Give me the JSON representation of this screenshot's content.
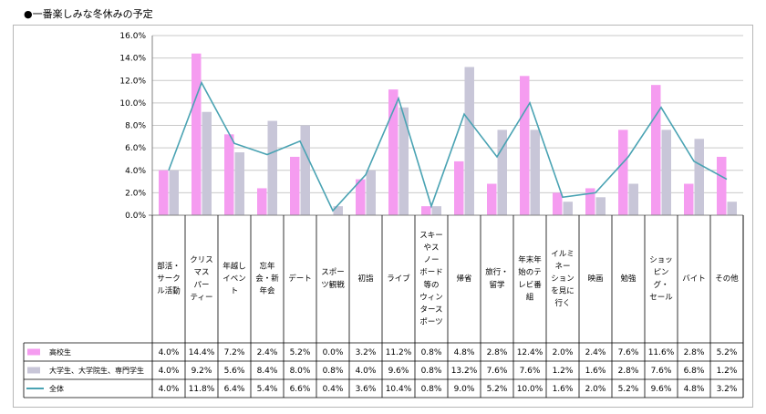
{
  "title": "●一番楽しみな冬休みの予定",
  "colors": {
    "hs": "#f59cf0",
    "univ": "#c8c6d8",
    "all": "#4aa3b3",
    "grid": "#c9c9c9",
    "axis": "#808080"
  },
  "chart_data": {
    "type": "bar",
    "title": "",
    "xlabel": "",
    "ylabel": "",
    "ylim": [
      0,
      16
    ],
    "yticks": [
      "0.0%",
      "2.0%",
      "4.0%",
      "6.0%",
      "8.0%",
      "10.0%",
      "12.0%",
      "14.0%",
      "16.0%"
    ],
    "grid": true,
    "categories": [
      "部活・サークル活動",
      "クリスマスパーティー",
      "年越しイベント",
      "忘年会・新年会",
      "デート",
      "スポーツ観戦",
      "初詣",
      "ライブ",
      "スキーやスノーボード等のウィンタースポーツ",
      "帰省",
      "旅行・留学",
      "年末年始のテレビ番組",
      "イルミネーションを見に行く",
      "映画",
      "勉強",
      "ショッピング・セール",
      "バイト",
      "その他"
    ],
    "category_lines": [
      [
        "部活・",
        "サーク",
        "ル活動"
      ],
      [
        "クリス",
        "マス",
        "パー",
        "ティー"
      ],
      [
        "年越し",
        "イベン",
        "ト"
      ],
      [
        "忘年",
        "会・新",
        "年会"
      ],
      [
        "デート"
      ],
      [
        "スポー",
        "ツ観戦"
      ],
      [
        "初詣"
      ],
      [
        "ライブ"
      ],
      [
        "スキー",
        "やス",
        "ノー",
        "ボード",
        "等の",
        "ウィン",
        "タース",
        "ポーツ"
      ],
      [
        "帰省"
      ],
      [
        "旅行・",
        "留学"
      ],
      [
        "年末年",
        "始のテ",
        "レビ番",
        "組"
      ],
      [
        "イルミ",
        "ネー",
        "ション",
        "を見に",
        "行く"
      ],
      [
        "映画"
      ],
      [
        "勉強"
      ],
      [
        "ショッ",
        "ピン",
        "グ・",
        "セール"
      ],
      [
        "バイト"
      ],
      [
        "その他"
      ]
    ],
    "series": [
      {
        "name": "高校生",
        "kind": "bar",
        "color": "#f59cf0",
        "values": [
          4.0,
          14.4,
          7.2,
          2.4,
          5.2,
          0.0,
          3.2,
          11.2,
          0.8,
          4.8,
          2.8,
          12.4,
          2.0,
          2.4,
          7.6,
          11.6,
          2.8,
          5.2
        ],
        "labels": [
          "4.0%",
          "14.4%",
          "7.2%",
          "2.4%",
          "5.2%",
          "0.0%",
          "3.2%",
          "11.2%",
          "0.8%",
          "4.8%",
          "2.8%",
          "12.4%",
          "2.0%",
          "2.4%",
          "7.6%",
          "11.6%",
          "2.8%",
          "5.2%"
        ]
      },
      {
        "name": "大学生、大学院生、専門学生",
        "kind": "bar",
        "color": "#c8c6d8",
        "values": [
          4.0,
          9.2,
          5.6,
          8.4,
          8.0,
          0.8,
          4.0,
          9.6,
          0.8,
          13.2,
          7.6,
          7.6,
          1.2,
          1.6,
          2.8,
          7.6,
          6.8,
          1.2
        ],
        "labels": [
          "4.0%",
          "9.2%",
          "5.6%",
          "8.4%",
          "8.0%",
          "0.8%",
          "4.0%",
          "9.6%",
          "0.8%",
          "13.2%",
          "7.6%",
          "7.6%",
          "1.2%",
          "1.6%",
          "2.8%",
          "7.6%",
          "6.8%",
          "1.2%"
        ]
      },
      {
        "name": "全体",
        "kind": "line",
        "color": "#4aa3b3",
        "values": [
          4.0,
          11.8,
          6.4,
          5.4,
          6.6,
          0.4,
          3.6,
          10.4,
          0.8,
          9.0,
          5.2,
          10.0,
          1.6,
          2.0,
          5.2,
          9.6,
          4.8,
          3.2
        ],
        "labels": [
          "4.0%",
          "11.8%",
          "6.4%",
          "5.4%",
          "6.6%",
          "0.4%",
          "3.6%",
          "10.4%",
          "0.8%",
          "9.0%",
          "5.2%",
          "10.0%",
          "1.6%",
          "2.0%",
          "5.2%",
          "9.6%",
          "4.8%",
          "3.2%"
        ]
      }
    ]
  }
}
